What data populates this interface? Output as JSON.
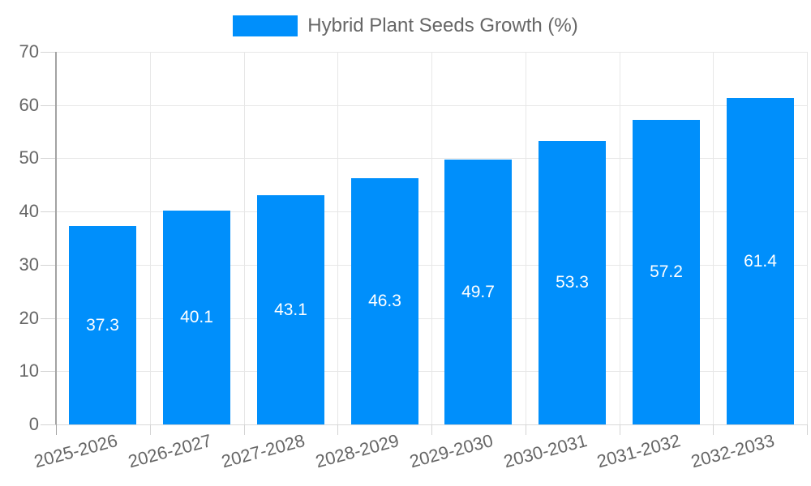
{
  "chart_data": {
    "type": "bar",
    "title": "Hybrid Plant Seeds Growth (%)",
    "legend_position": "top",
    "legend_entries": [
      "Hybrid Plant Seeds Growth (%)"
    ],
    "categories": [
      "2025-2026",
      "2026-2027",
      "2027-2028",
      "2028-2029",
      "2029-2030",
      "2030-2031",
      "2031-2032",
      "2032-2033"
    ],
    "values": [
      37.3,
      40.1,
      43.1,
      46.3,
      49.7,
      53.3,
      57.2,
      61.4
    ],
    "value_labels": [
      "37.3",
      "40.1",
      "43.1",
      "46.3",
      "49.7",
      "53.3",
      "57.2",
      "61.4"
    ],
    "xlabel": "",
    "ylabel": "",
    "ylim": [
      0,
      70
    ],
    "ytick_step": 10,
    "ytick_labels": [
      "0",
      "10",
      "20",
      "30",
      "40",
      "50",
      "60",
      "70"
    ],
    "grid": true,
    "x_label_rotation_deg": -15,
    "colors": {
      "bar": "#008FFB",
      "bar_label": "#FFFFFF",
      "axis_text": "#666666",
      "grid": "#E7E7E7",
      "baseline": "#D9D9D9",
      "tick": "#D4D4D4",
      "axis_line": "#A3A3A3"
    }
  }
}
